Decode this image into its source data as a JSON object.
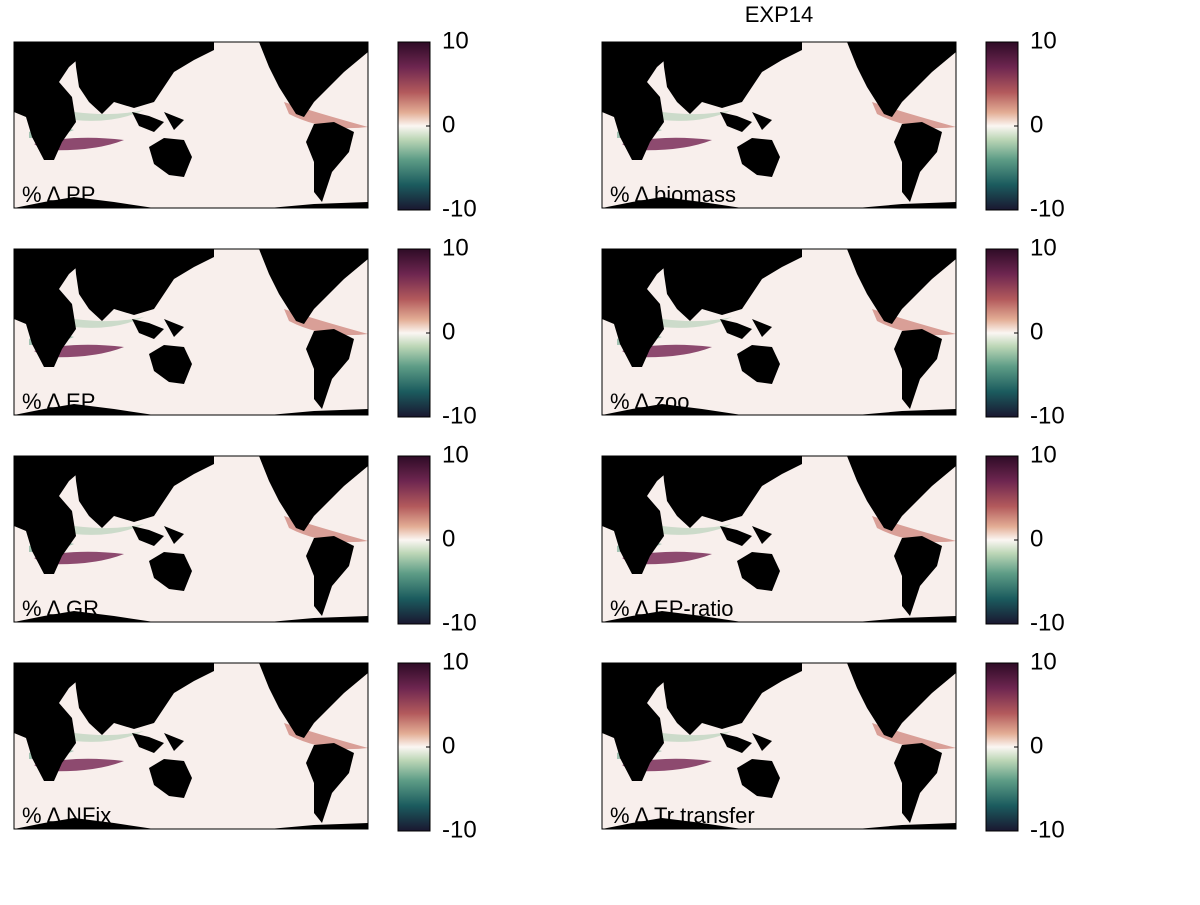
{
  "title": "EXP14",
  "panels": [
    {
      "label": "% Δ PP",
      "cbar": {
        "lim": [
          -10,
          10
        ],
        "ticks": [
          10,
          0,
          -10
        ]
      }
    },
    {
      "label": "% Δ biomass",
      "cbar": {
        "lim": [
          -10,
          10
        ],
        "ticks": [
          10,
          0,
          -10
        ]
      }
    },
    {
      "label": "% Δ EP",
      "cbar": {
        "lim": [
          -10,
          10
        ],
        "ticks": [
          10,
          0,
          -10
        ]
      }
    },
    {
      "label": "% Δ zoo",
      "cbar": {
        "lim": [
          -10,
          10
        ],
        "ticks": [
          10,
          0,
          -10
        ]
      }
    },
    {
      "label": "% Δ GR",
      "cbar": {
        "lim": [
          -10,
          10
        ],
        "ticks": [
          10,
          0,
          -10
        ]
      }
    },
    {
      "label": "% Δ EP-ratio",
      "cbar": {
        "lim": [
          -10,
          10
        ],
        "ticks": [
          10,
          0,
          -10
        ]
      }
    },
    {
      "label": "% Δ NFix",
      "cbar": {
        "lim": [
          -10,
          10
        ],
        "ticks": [
          10,
          0,
          -10
        ]
      }
    },
    {
      "label": "% Δ Tr transfer",
      "cbar": {
        "lim": [
          -10,
          10
        ],
        "ticks": [
          10,
          0,
          -10
        ]
      }
    }
  ]
}
